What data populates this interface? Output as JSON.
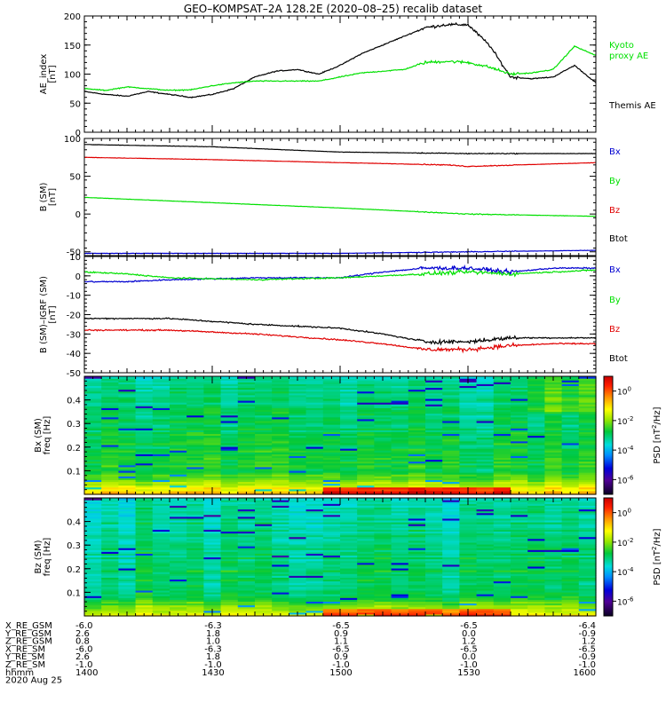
{
  "title": "GEO–KOMPSAT–2A 128.2E (2020–08–25) recalib dataset",
  "colors": {
    "black": "#000000",
    "red": "#e00000",
    "green": "#00e000",
    "blue": "#0000d0"
  },
  "chart_data": [
    {
      "id": "ae",
      "type": "line",
      "ylabel": "AE_index",
      "yunit": "[nT]",
      "ylim": [
        0,
        200
      ],
      "yticks": [
        0,
        50,
        100,
        150,
        200
      ],
      "x_range_hhmm": [
        1400,
        1600
      ],
      "series": [
        {
          "name": "Themis AE",
          "color": "#000000",
          "t": [
            0,
            5,
            10,
            15,
            20,
            25,
            30,
            35,
            40,
            45,
            50,
            55,
            60,
            65,
            70,
            75,
            80,
            85,
            90,
            95,
            100,
            105,
            110,
            115,
            120
          ],
          "values": [
            70,
            65,
            62,
            70,
            65,
            60,
            65,
            75,
            95,
            105,
            108,
            100,
            115,
            135,
            150,
            165,
            180,
            185,
            185,
            150,
            95,
            92,
            95,
            115,
            85
          ]
        },
        {
          "name": "Kyoto proxy AE",
          "color": "#00e000",
          "t": [
            0,
            5,
            10,
            15,
            20,
            25,
            30,
            35,
            40,
            45,
            50,
            55,
            60,
            65,
            70,
            75,
            80,
            85,
            90,
            95,
            100,
            105,
            110,
            115,
            120
          ],
          "values": [
            75,
            72,
            78,
            75,
            72,
            73,
            80,
            85,
            88,
            88,
            88,
            88,
            95,
            102,
            105,
            108,
            120,
            122,
            120,
            112,
            100,
            102,
            108,
            148,
            132
          ]
        }
      ],
      "legend": [
        {
          "text": "Kyoto",
          "color": "#00e000"
        },
        {
          "text": "proxy AE",
          "color": "#00e000"
        },
        {
          "text": "Themis AE",
          "color": "#000000"
        }
      ]
    },
    {
      "id": "bsm",
      "type": "line",
      "ylabel": "B (SM)",
      "yunit": "[nT]",
      "ylim": [
        -55,
        100
      ],
      "yticks": [
        -50,
        0,
        50,
        100
      ],
      "series": [
        {
          "name": "Btot",
          "color": "#000000",
          "t": [
            0,
            30,
            60,
            90,
            120
          ],
          "values": [
            92,
            89,
            82,
            80,
            80
          ]
        },
        {
          "name": "Bz",
          "color": "#e00000",
          "t": [
            0,
            30,
            60,
            85,
            90,
            120
          ],
          "values": [
            75,
            72,
            68,
            65,
            63,
            68
          ]
        },
        {
          "name": "By",
          "color": "#00e000",
          "t": [
            0,
            30,
            60,
            90,
            120
          ],
          "values": [
            22,
            15,
            8,
            0,
            -3
          ]
        },
        {
          "name": "Bx",
          "color": "#0000d0",
          "t": [
            0,
            30,
            60,
            90,
            120
          ],
          "values": [
            -52,
            -52,
            -52,
            -50,
            -48
          ]
        }
      ],
      "legend": [
        {
          "text": "Bx",
          "color": "#0000d0"
        },
        {
          "text": "By",
          "color": "#00e000"
        },
        {
          "text": "Bz",
          "color": "#e00000"
        },
        {
          "text": "Btot",
          "color": "#000000"
        }
      ]
    },
    {
      "id": "bigrf",
      "type": "line",
      "ylabel": "B (SM)–IGRF (SM)",
      "yunit": "[nT]",
      "ylim": [
        -50,
        10
      ],
      "yticks": [
        -50,
        -40,
        -30,
        -20,
        -10,
        0,
        10
      ],
      "series": [
        {
          "name": "Bx",
          "color": "#0000d0",
          "t": [
            0,
            10,
            20,
            40,
            60,
            70,
            80,
            90,
            100,
            110,
            120
          ],
          "values": [
            -3,
            -3,
            -2,
            -1,
            -1,
            2,
            4,
            4,
            2,
            4,
            4
          ]
        },
        {
          "name": "By",
          "color": "#00e000",
          "t": [
            0,
            10,
            20,
            40,
            60,
            70,
            80,
            90,
            100,
            110,
            120
          ],
          "values": [
            2,
            1,
            -1,
            -2,
            -1,
            0,
            1,
            2,
            1,
            2,
            3
          ]
        },
        {
          "name": "Btot",
          "color": "#000000",
          "t": [
            0,
            20,
            40,
            60,
            70,
            80,
            90,
            100,
            110,
            120
          ],
          "values": [
            -22,
            -22,
            -25,
            -27,
            -30,
            -34,
            -34,
            -32,
            -32,
            -32
          ]
        },
        {
          "name": "Bz",
          "color": "#e00000",
          "t": [
            0,
            20,
            40,
            60,
            70,
            80,
            90,
            100,
            110,
            120
          ],
          "values": [
            -28,
            -28,
            -30,
            -33,
            -35,
            -38,
            -38,
            -36,
            -35,
            -35
          ]
        }
      ],
      "legend": [
        {
          "text": "Bx",
          "color": "#0000d0"
        },
        {
          "text": "By",
          "color": "#00e000"
        },
        {
          "text": "Bz",
          "color": "#e00000"
        },
        {
          "text": "Btot",
          "color": "#000000"
        }
      ]
    },
    {
      "id": "spec_bx",
      "type": "heatmap",
      "ylabel": "Bx (SM)",
      "ylabel2": "freq [Hz]",
      "ylim": [
        0,
        0.5
      ],
      "yticks": [
        0.1,
        0.2,
        0.3,
        0.4
      ],
      "colorbar": {
        "label": "PSD [nT^2/Hz]",
        "ticks": [
          "10^0",
          "10^-2",
          "10^-4",
          "10^-6"
        ],
        "range_log10": [
          -7,
          1
        ]
      },
      "note": "log10 PSD mostly -3 to -2 above 0.1 Hz, rising to 0 to 1 below 0.05 Hz, strongest 1500–1545"
    },
    {
      "id": "spec_bz",
      "type": "heatmap",
      "ylabel": "Bz (SM)",
      "ylabel2": "freq [Hz]",
      "ylim": [
        0,
        0.5
      ],
      "yticks": [
        0.1,
        0.2,
        0.3,
        0.4
      ],
      "colorbar": {
        "label": "PSD [nT^2/Hz]",
        "ticks": [
          "10^0",
          "10^-2",
          "10^-4",
          "10^-6"
        ],
        "range_log10": [
          -7,
          1
        ]
      },
      "note": "log10 PSD mostly -3 to -2.5 above 0.15 Hz, rising to 0 to 1 below 0.05 Hz"
    }
  ],
  "ephemeris": {
    "labels": [
      "X_RE_GSM",
      "Y_RE_GSM",
      "Z_RE_GSM",
      "X_RE_SM",
      "Y_RE_SM",
      "Z_RE_SM",
      "hhmm"
    ],
    "columns": [
      [
        "-6.0",
        "2.6",
        "0.8",
        "-6.0",
        "2.6",
        "-1.0",
        "1400"
      ],
      [
        "-6.3",
        "1.8",
        "1.0",
        "-6.3",
        "1.8",
        "-1.0",
        "1430"
      ],
      [
        "-6.5",
        "0.9",
        "1.1",
        "-6.5",
        "0.9",
        "-1.0",
        "1500"
      ],
      [
        "-6.5",
        "0.0",
        "1.2",
        "-6.5",
        "0.0",
        "-1.0",
        "1530"
      ],
      [
        "-6.4",
        "-0.9",
        "1.2",
        "-6.5",
        "-0.9",
        "-1.0",
        "1600"
      ]
    ],
    "date": "2020 Aug 25"
  }
}
